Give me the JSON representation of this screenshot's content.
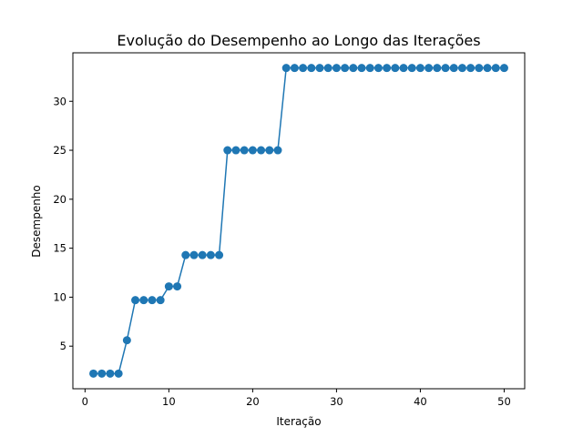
{
  "chart_data": {
    "type": "line",
    "title": "Evolução do Desempenho ao Longo das Iterações",
    "xlabel": "Iteração",
    "ylabel": "Desempenho",
    "xlim": [
      -1.45,
      52.45
    ],
    "ylim": [
      0.65,
      34.95
    ],
    "xticks": [
      0,
      10,
      20,
      30,
      40,
      50
    ],
    "yticks": [
      5,
      10,
      15,
      20,
      25,
      30
    ],
    "grid": false,
    "color": "#1f77b4",
    "markers": "circle",
    "x": [
      1,
      2,
      3,
      4,
      5,
      6,
      7,
      8,
      9,
      10,
      11,
      12,
      13,
      14,
      15,
      16,
      17,
      18,
      19,
      20,
      21,
      22,
      23,
      24,
      25,
      26,
      27,
      28,
      29,
      30,
      31,
      32,
      33,
      34,
      35,
      36,
      37,
      38,
      39,
      40,
      41,
      42,
      43,
      44,
      45,
      46,
      47,
      48,
      49,
      50
    ],
    "y": [
      2.2,
      2.2,
      2.2,
      2.2,
      5.6,
      9.7,
      9.7,
      9.7,
      9.7,
      11.1,
      11.1,
      14.3,
      14.3,
      14.3,
      14.3,
      14.3,
      25.0,
      25.0,
      25.0,
      25.0,
      25.0,
      25.0,
      25.0,
      33.4,
      33.4,
      33.4,
      33.4,
      33.4,
      33.4,
      33.4,
      33.4,
      33.4,
      33.4,
      33.4,
      33.4,
      33.4,
      33.4,
      33.4,
      33.4,
      33.4,
      33.4,
      33.4,
      33.4,
      33.4,
      33.4,
      33.4,
      33.4,
      33.4,
      33.4,
      33.4
    ]
  }
}
